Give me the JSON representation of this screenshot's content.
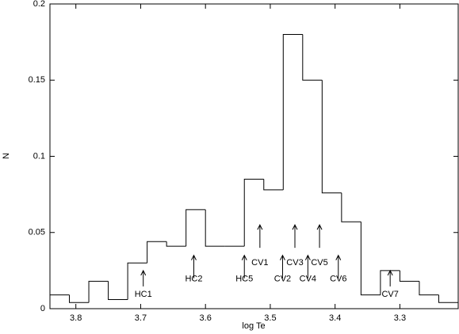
{
  "chart_data": {
    "type": "histogram",
    "xlabel": "log Te",
    "ylabel": "N",
    "bins": [
      3.84,
      3.81,
      3.78,
      3.75,
      3.72,
      3.69,
      3.66,
      3.63,
      3.6,
      3.57,
      3.54,
      3.51,
      3.48,
      3.45,
      3.42,
      3.39,
      3.36,
      3.33,
      3.3,
      3.27,
      3.24,
      3.21
    ],
    "values": [
      0.009,
      0.004,
      0.018,
      0.006,
      0.03,
      0.044,
      0.041,
      0.065,
      0.041,
      0.041,
      0.085,
      0.078,
      0.18,
      0.15,
      0.076,
      0.057,
      0.009,
      0.025,
      0.018,
      0.009,
      0.004
    ],
    "color": "#000000",
    "xlim": [
      3.84,
      3.21
    ],
    "xticks": [
      3.8,
      3.7,
      3.6,
      3.5,
      3.4,
      3.3
    ],
    "ylim": [
      0,
      0.2
    ],
    "yticks": [
      0,
      0.05,
      0.1,
      0.15,
      0.2
    ],
    "annotations": [
      {
        "text": "HC1",
        "x": 3.696,
        "y": 0.025
      },
      {
        "text": "HC2",
        "x": 3.618,
        "y": 0.035
      },
      {
        "text": "HC5",
        "x": 3.54,
        "y": 0.035
      },
      {
        "text": "CV1",
        "x": 3.516,
        "y": 0.055
      },
      {
        "text": "CV2",
        "x": 3.481,
        "y": 0.035
      },
      {
        "text": "CV3",
        "x": 3.462,
        "y": 0.055
      },
      {
        "text": "CV4",
        "x": 3.442,
        "y": 0.035
      },
      {
        "text": "CV5",
        "x": 3.424,
        "y": 0.055
      },
      {
        "text": "CV6",
        "x": 3.395,
        "y": 0.035
      },
      {
        "text": "CV7",
        "x": 3.315,
        "y": 0.025
      }
    ]
  }
}
